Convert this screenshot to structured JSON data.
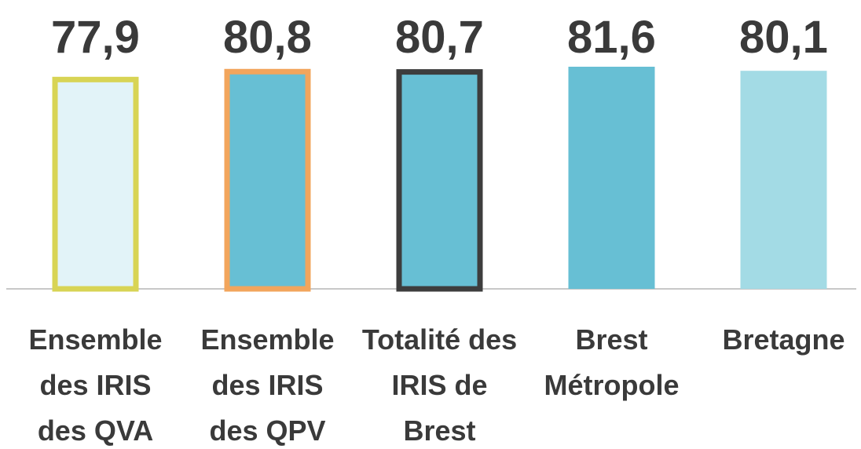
{
  "chart_data": {
    "type": "bar",
    "categories": [
      "Ensemble des IRIS des QVA",
      "Ensemble des IRIS des QPV",
      "Totalité des IRIS de Brest",
      "Brest Métropole",
      "Bretagne"
    ],
    "values": [
      77.9,
      80.8,
      80.7,
      81.6,
      80.1
    ],
    "value_labels": [
      "77,9",
      "80,8",
      "80,7",
      "81,6",
      "80,1"
    ],
    "colors": [
      "#e2f3f8",
      "#67bfd4",
      "#67bfd4",
      "#67bfd4",
      "#a3dbe5"
    ],
    "edge_colors": [
      "#d8d455",
      "#f2a55c",
      "#3d3d3d",
      null,
      null
    ]
  }
}
